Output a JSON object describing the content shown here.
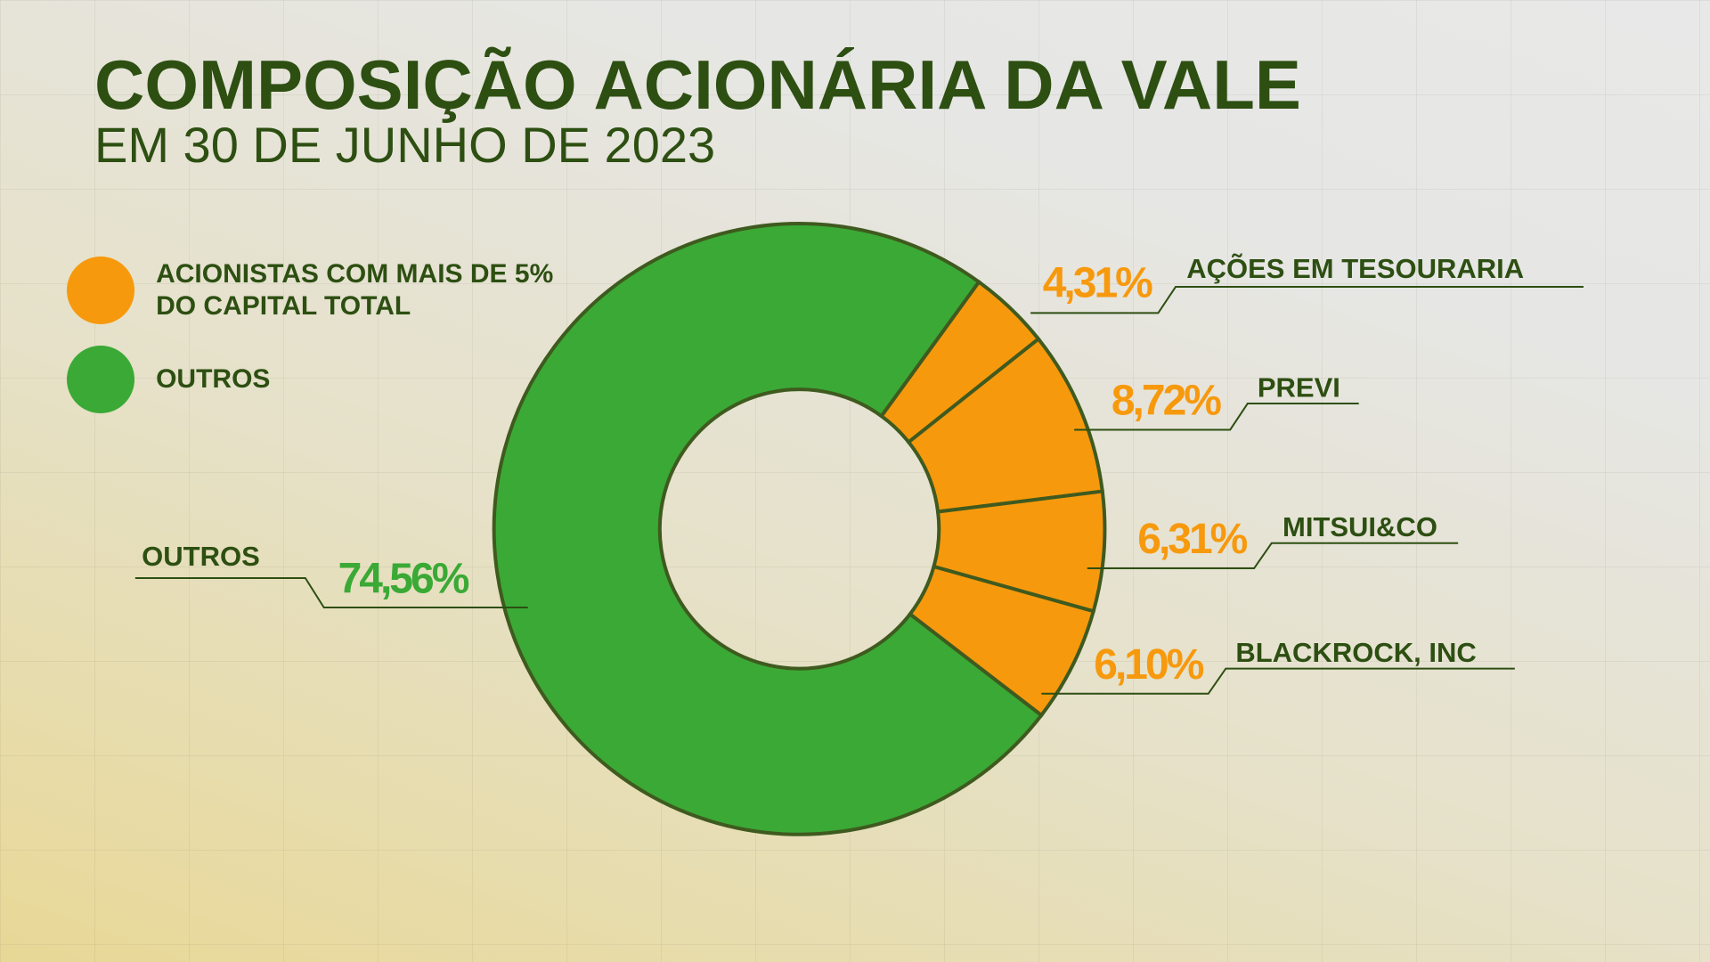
{
  "chart_data": {
    "type": "pie",
    "title": "COMPOSIÇÃO ACIONÁRIA DA VALE",
    "subtitle": "EM 30 DE JUNHO DE 2023",
    "categories": [
      "AÇÕES EM TESOURARIA",
      "PREVI",
      "MITSUI&CO",
      "BLACKROCK, INC",
      "OUTROS"
    ],
    "values": [
      4.31,
      8.72,
      6.31,
      6.1,
      74.56
    ],
    "value_labels": [
      "4,31%",
      "8,72%",
      "6,31%",
      "6,10%",
      "74,56%"
    ],
    "colors": [
      "#f7990d",
      "#f7990d",
      "#f7990d",
      "#f7990d",
      "#3aa935"
    ],
    "legend": [
      {
        "name": "ACIONISTAS COM MAIS DE 5% DO CAPITAL TOTAL",
        "color": "#f7990d"
      },
      {
        "name": "OUTROS",
        "color": "#3aa935"
      }
    ]
  }
}
